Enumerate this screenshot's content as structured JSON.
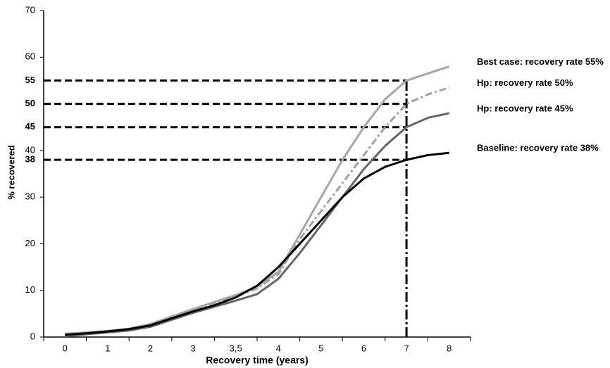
{
  "chart_data": {
    "type": "line",
    "ylabel": "% recovered",
    "xlabel": "Recovery time (years)",
    "categories": [
      "0",
      null,
      "1",
      null,
      "2",
      null,
      "3",
      null,
      "3,5",
      null,
      "4",
      null,
      "5",
      null,
      "6",
      null,
      "7",
      null,
      "8"
    ],
    "ylim": [
      0,
      70
    ],
    "yticks": [
      0,
      10,
      20,
      30,
      40,
      60,
      70
    ],
    "reference_ticks": [
      38,
      45,
      50,
      55
    ],
    "series": [
      {
        "name": "Best case: recovery rate  55%",
        "color": "#a6a6a6",
        "dashed": false,
        "values": [
          0.7,
          1,
          1.3,
          1.8,
          2.8,
          4.4,
          6,
          7.5,
          9,
          10.8,
          14,
          22,
          30,
          38,
          45,
          51,
          55,
          56.5,
          58
        ]
      },
      {
        "name": "Hp: recovery rate 50%",
        "color": "#a0a0a0",
        "dashed": true,
        "values": [
          0.6,
          0.9,
          1.2,
          1.7,
          2.7,
          4.2,
          5.8,
          7.2,
          8.7,
          10.4,
          13.5,
          21,
          27,
          33,
          39,
          45,
          50,
          52,
          53.5
        ]
      },
      {
        "name": "Hp: recovery rate 45%",
        "color": "#666666",
        "dashed": false,
        "values": [
          0.2,
          0.6,
          1,
          1.4,
          2.2,
          3.7,
          5.2,
          6.5,
          7.8,
          9.2,
          12.5,
          18,
          24,
          30,
          36,
          41,
          45,
          47,
          48
        ]
      },
      {
        "name": "Baseline: recovery rate 38%",
        "color": "#000000",
        "dashed": false,
        "values": [
          0.5,
          0.8,
          1.2,
          1.7,
          2.5,
          4,
          5.5,
          6.8,
          8.5,
          11,
          15,
          20,
          25,
          30,
          34,
          36.5,
          38,
          39,
          39.5
        ]
      }
    ]
  }
}
